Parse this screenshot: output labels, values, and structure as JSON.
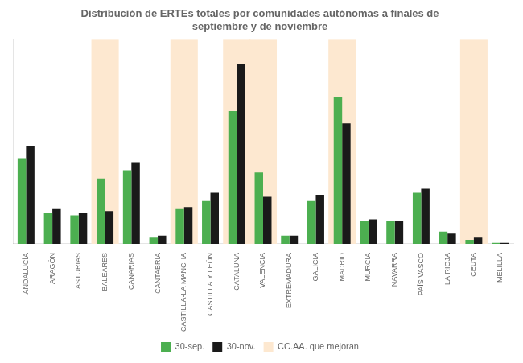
{
  "chart_data": {
    "type": "bar",
    "title": "Distribución de ERTEs totales por comunidades autónomas a finales de\nseptiembre y de noviembre",
    "categories": [
      "ANDALUCÍA",
      "ARAGÓN",
      "ASTURIAS",
      "BALEARES",
      "CANARIAS",
      "CANTABRIA",
      "CASTILLA-LA MANCHA",
      "CASTILLA Y LEÓN",
      "CATALUÑA",
      "VALENCIA",
      "EXTREMADURA",
      "GALICIA",
      "MADRID",
      "MURCIA",
      "NAVARRA",
      "PAÍS VASCO",
      "LA RIOJA",
      "CEUTA",
      "MELILLA"
    ],
    "series": [
      {
        "name": "30-sep.",
        "color": "#4caf50",
        "values": [
          4.2,
          1.5,
          1.4,
          3.2,
          3.6,
          0.3,
          1.7,
          2.1,
          6.5,
          3.5,
          0.4,
          2.1,
          7.2,
          1.1,
          1.1,
          2.5,
          0.6,
          0.2,
          0.05
        ]
      },
      {
        "name": "30-nov.",
        "color": "#1a1a1a",
        "values": [
          4.8,
          1.7,
          1.5,
          1.6,
          4.0,
          0.4,
          1.8,
          2.5,
          8.8,
          2.3,
          0.4,
          2.4,
          5.9,
          1.2,
          1.1,
          2.7,
          0.5,
          0.3,
          0.05
        ]
      },
      {
        "name": "CC.AA. que mejoran",
        "type": "highlight",
        "color": "#fde8d0",
        "values": [
          false,
          false,
          false,
          true,
          false,
          false,
          true,
          false,
          true,
          true,
          false,
          false,
          true,
          false,
          false,
          false,
          false,
          true,
          false
        ]
      }
    ],
    "ylim": [
      0,
      10
    ],
    "grid": false,
    "tick_labels": "x",
    "legend": "bottom"
  }
}
